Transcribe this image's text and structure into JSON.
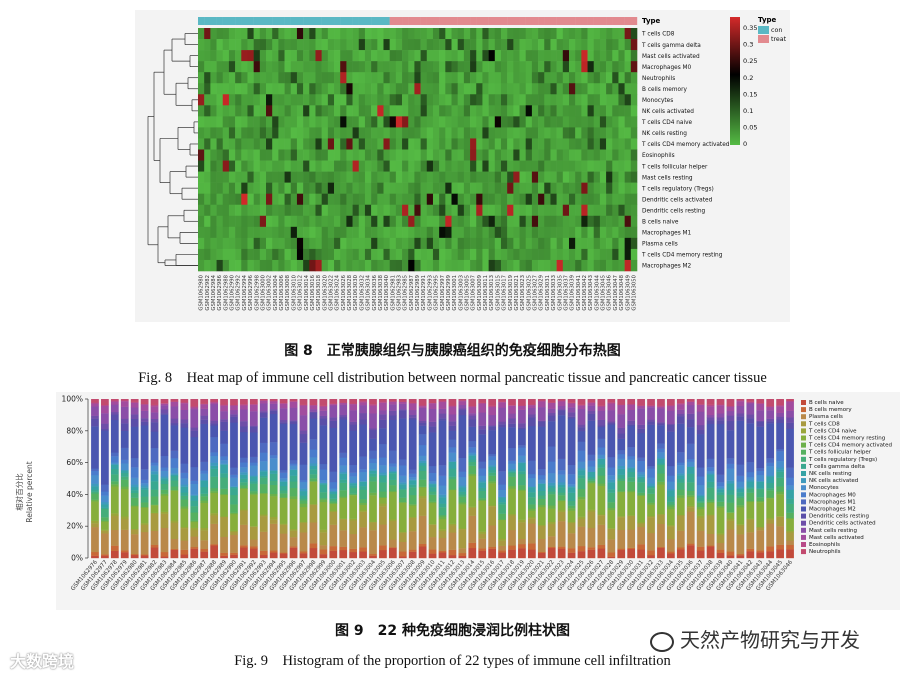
{
  "figure8": {
    "caption_cn": "图 8　正常胰腺组织与胰腺癌组织的免疫细胞分布热图",
    "caption_en": "Fig. 8　Heat map of immune cell distribution between normal pancreatic tissue and pancreatic cancer tissue",
    "legend_type_title": "Type",
    "annotation_label": "Type",
    "groups": [
      {
        "name": "con",
        "color": "#5ab8c4"
      },
      {
        "name": "treat",
        "color": "#e28a8f"
      }
    ],
    "colorbar_ticks": [
      "0.35",
      "0.3",
      "0.25",
      "0.2",
      "0.15",
      "0.1",
      "0.05",
      "0"
    ],
    "colors": {
      "low": "#55bb44",
      "mid": "#000000",
      "high": "#d42a2a"
    }
  },
  "figure9": {
    "caption_cn": "图 9　22 种免疫细胞浸润比例柱状图",
    "caption_en": "Fig. 9　Histogram of the proportion of 22 types of immune cell infiltration",
    "ylabel_cn": "相对百分比",
    "ylabel_en": "Relative percent"
  },
  "chart_data": [
    {
      "type": "heatmap",
      "title": "",
      "rows": [
        "T cells CD8",
        "T cells gamma delta",
        "Mast cells activated",
        "Macrophages M0",
        "Neutrophils",
        "B cells memory",
        "Monocytes",
        "NK cells activated",
        "T cells CD4 naive",
        "NK cells resting",
        "T cells CD4 memory activated",
        "Eosinophils",
        "T cells follicular helper",
        "Mast cells resting",
        "T cells regulatory (Tregs)",
        "Dendritic cells activated",
        "Dendritic cells resting",
        "B cells naive",
        "Macrophages M1",
        "Plasma cells",
        "T cells CD4 memory resting",
        "Macrophages M2"
      ],
      "columns_count": 71,
      "columns_con": 31,
      "columns_treat": 40,
      "column_labels": [
        "GSM1062980",
        "GSM1062982",
        "GSM1062984",
        "GSM1062986",
        "GSM1062988",
        "GSM1062990",
        "GSM1062992",
        "GSM1062994",
        "GSM1062996",
        "GSM1062998",
        "GSM1063000",
        "GSM1063002",
        "GSM1063004",
        "GSM1063006",
        "GSM1063008",
        "GSM1063010",
        "GSM1063012",
        "GSM1063014",
        "GSM1063016",
        "GSM1063018",
        "GSM1063020",
        "GSM1063022",
        "GSM1063024",
        "GSM1063026",
        "GSM1063028",
        "GSM1063030",
        "GSM1063032",
        "GSM1063034",
        "GSM1063036",
        "GSM1063038",
        "GSM1063040",
        "GSM1062981",
        "GSM1062983",
        "GSM1062985",
        "GSM1062987",
        "GSM1062989",
        "GSM1062991",
        "GSM1062993",
        "GSM1062995",
        "GSM1062997",
        "GSM1062999",
        "GSM1063001",
        "GSM1063003",
        "GSM1063005",
        "GSM1063007",
        "GSM1063009",
        "GSM1063011",
        "GSM1063013",
        "GSM1063015",
        "GSM1063017",
        "GSM1063019",
        "GSM1063021",
        "GSM1063023",
        "GSM1063025",
        "GSM1063027",
        "GSM1063029",
        "GSM1063031",
        "GSM1063033",
        "GSM1063035",
        "GSM1063037",
        "GSM1063039",
        "GSM1063041",
        "GSM1063042",
        "GSM1063043",
        "GSM1063044",
        "GSM1063045",
        "GSM1063046",
        "GSM1063047",
        "GSM1063048",
        "GSM1063049",
        "GSM1063050"
      ],
      "value_range": [
        0,
        0.35
      ],
      "legend_placement": "right"
    },
    {
      "type": "bar",
      "stacked": true,
      "title": "",
      "xlabel": "",
      "ylabel": "Relative percent",
      "ylim": [
        0,
        100
      ],
      "yticks": [
        "0%",
        "20%",
        "40%",
        "60%",
        "80%",
        "100%"
      ],
      "samples_count": 71,
      "legend_placement": "right",
      "series": [
        {
          "name": "B cells naive",
          "color": "#c24a3a",
          "mean": 0.04
        },
        {
          "name": "B cells memory",
          "color": "#c86838",
          "mean": 0.02
        },
        {
          "name": "Plasma cells",
          "color": "#b9894a",
          "mean": 0.1
        },
        {
          "name": "T cells CD8",
          "color": "#a89a40",
          "mean": 0.07
        },
        {
          "name": "T cells CD4 naive",
          "color": "#9aa53a",
          "mean": 0.01
        },
        {
          "name": "T cells CD4 memory resting",
          "color": "#86ae3c",
          "mean": 0.12
        },
        {
          "name": "T cells CD4 memory activated",
          "color": "#6cb04a",
          "mean": 0.01
        },
        {
          "name": "T cells follicular helper",
          "color": "#55b060",
          "mean": 0.04
        },
        {
          "name": "T cells regulatory (Tregs)",
          "color": "#45ad7a",
          "mean": 0.04
        },
        {
          "name": "T cells gamma delta",
          "color": "#3aa890",
          "mean": 0.03
        },
        {
          "name": "NK cells resting",
          "color": "#36a2a5",
          "mean": 0.03
        },
        {
          "name": "NK cells activated",
          "color": "#3f9abd",
          "mean": 0.01
        },
        {
          "name": "Monocytes",
          "color": "#4a8ecc",
          "mean": 0.04
        },
        {
          "name": "Macrophages M0",
          "color": "#4a7ccc",
          "mean": 0.04
        },
        {
          "name": "Macrophages M1",
          "color": "#4e6ac0",
          "mean": 0.05
        },
        {
          "name": "Macrophages M2",
          "color": "#4a56b0",
          "mean": 0.2
        },
        {
          "name": "Dendritic cells resting",
          "color": "#5a4ea8",
          "mean": 0.03
        },
        {
          "name": "Dendritic cells activated",
          "color": "#6e4ea8",
          "mean": 0.02
        },
        {
          "name": "Mast cells resting",
          "color": "#8a4ea8",
          "mean": 0.06
        },
        {
          "name": "Mast cells activated",
          "color": "#a24c9e",
          "mean": 0.03
        },
        {
          "name": "Eosinophils",
          "color": "#b84a88",
          "mean": 0.005
        },
        {
          "name": "Neutrophils",
          "color": "#c24a6e",
          "mean": 0.025
        }
      ],
      "x_labels": [
        "GSM1062976",
        "GSM1062977",
        "GSM1062978",
        "GSM1062979",
        "GSM1062980",
        "GSM1062981",
        "GSM1062982",
        "GSM1062983",
        "GSM1062984",
        "GSM1062985",
        "GSM1062986",
        "GSM1062987",
        "GSM1062988",
        "GSM1062989",
        "GSM1062990",
        "GSM1062991",
        "GSM1062992",
        "GSM1062993",
        "GSM1062994",
        "GSM1062995",
        "GSM1062996",
        "GSM1062997",
        "GSM1062998",
        "GSM1062999",
        "GSM1063000",
        "GSM1063001",
        "GSM1063002",
        "GSM1063003",
        "GSM1063004",
        "GSM1063005",
        "GSM1063006",
        "GSM1063007",
        "GSM1063008",
        "GSM1063009",
        "GSM1063010",
        "GSM1063011",
        "GSM1063012",
        "GSM1063013",
        "GSM1063014",
        "GSM1063015",
        "GSM1063016",
        "GSM1063017",
        "GSM1063018",
        "GSM1063019",
        "GSM1063020",
        "GSM1063021",
        "GSM1063022",
        "GSM1063023",
        "GSM1063024",
        "GSM1063025",
        "GSM1063026",
        "GSM1063027",
        "GSM1063028",
        "GSM1063029",
        "GSM1063030",
        "GSM1063031",
        "GSM1063032",
        "GSM1063033",
        "GSM1063034",
        "GSM1063035",
        "GSM1063036",
        "GSM1063037",
        "GSM1063038",
        "GSM1063039",
        "GSM1063040",
        "GSM1063041",
        "GSM1063042",
        "GSM1063043",
        "GSM1063044",
        "GSM1063045",
        "GSM1063046"
      ]
    }
  ],
  "watermarks": {
    "left": "大数跨境",
    "right": "天然产物研究与开发"
  }
}
